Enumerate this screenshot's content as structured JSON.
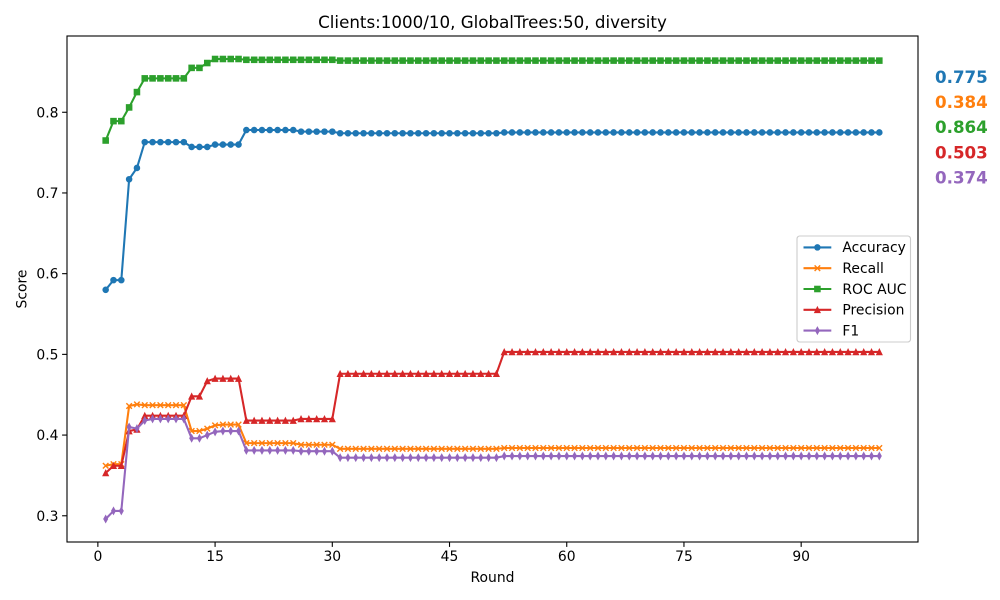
{
  "chart_data": {
    "type": "line",
    "title": "Clients:1000/10, GlobalTrees:50, diversity",
    "xlabel": "Round",
    "ylabel": "Score",
    "xlim": [
      -3.95,
      104.95
    ],
    "ylim": [
      0.2675,
      0.8945
    ],
    "xticks": [
      0,
      15,
      30,
      45,
      60,
      75,
      90
    ],
    "yticks": [
      0.3,
      0.4,
      0.5,
      0.6,
      0.7,
      0.8
    ],
    "grid": false,
    "legend": "center right",
    "x": [
      1,
      2,
      3,
      4,
      5,
      6,
      7,
      8,
      9,
      10,
      11,
      12,
      13,
      14,
      15,
      16,
      17,
      18,
      19,
      20,
      21,
      22,
      23,
      24,
      25,
      26,
      27,
      28,
      29,
      30,
      31,
      32,
      33,
      34,
      35,
      36,
      37,
      38,
      39,
      40,
      41,
      42,
      43,
      44,
      45,
      46,
      47,
      48,
      49,
      50,
      51,
      52,
      53,
      54,
      55,
      56,
      57,
      58,
      59,
      60,
      61,
      62,
      63,
      64,
      65,
      66,
      67,
      68,
      69,
      70,
      71,
      72,
      73,
      74,
      75,
      76,
      77,
      78,
      79,
      80,
      81,
      82,
      83,
      84,
      85,
      86,
      87,
      88,
      89,
      90,
      91,
      92,
      93,
      94,
      95,
      96,
      97,
      98,
      99,
      100
    ],
    "series": [
      {
        "name": "Accuracy",
        "color": "#1f77b4",
        "marker": "circle",
        "values": [
          0.58,
          0.592,
          0.592,
          0.717,
          0.731,
          0.763,
          0.763,
          0.763,
          0.763,
          0.763,
          0.763,
          0.757,
          0.757,
          0.757,
          0.76,
          0.76,
          0.76,
          0.76,
          0.778,
          0.778,
          0.778,
          0.778,
          0.778,
          0.778,
          0.778,
          0.776,
          0.776,
          0.776,
          0.776,
          0.776,
          0.774,
          0.774,
          0.774,
          0.774,
          0.774,
          0.774,
          0.774,
          0.774,
          0.774,
          0.774,
          0.774,
          0.774,
          0.774,
          0.774,
          0.774,
          0.774,
          0.774,
          0.774,
          0.774,
          0.774,
          0.774,
          0.775,
          0.775,
          0.775,
          0.775,
          0.775,
          0.775,
          0.775,
          0.775,
          0.775,
          0.775,
          0.775,
          0.775,
          0.775,
          0.775,
          0.775,
          0.775,
          0.775,
          0.775,
          0.775,
          0.775,
          0.775,
          0.775,
          0.775,
          0.775,
          0.775,
          0.775,
          0.775,
          0.775,
          0.775,
          0.775,
          0.775,
          0.775,
          0.775,
          0.775,
          0.775,
          0.775,
          0.775,
          0.775,
          0.775,
          0.775,
          0.775,
          0.775,
          0.775,
          0.775,
          0.775,
          0.775,
          0.775,
          0.775,
          0.775
        ]
      },
      {
        "name": "Recall",
        "color": "#ff7f0e",
        "marker": "x",
        "values": [
          0.362,
          0.364,
          0.364,
          0.436,
          0.438,
          0.437,
          0.437,
          0.437,
          0.437,
          0.437,
          0.437,
          0.405,
          0.405,
          0.408,
          0.412,
          0.413,
          0.413,
          0.413,
          0.39,
          0.39,
          0.39,
          0.39,
          0.39,
          0.39,
          0.39,
          0.388,
          0.388,
          0.388,
          0.388,
          0.388,
          0.383,
          0.383,
          0.383,
          0.383,
          0.383,
          0.383,
          0.383,
          0.383,
          0.383,
          0.383,
          0.383,
          0.383,
          0.383,
          0.383,
          0.383,
          0.383,
          0.383,
          0.383,
          0.383,
          0.383,
          0.383,
          0.384,
          0.384,
          0.384,
          0.384,
          0.384,
          0.384,
          0.384,
          0.384,
          0.384,
          0.384,
          0.384,
          0.384,
          0.384,
          0.384,
          0.384,
          0.384,
          0.384,
          0.384,
          0.384,
          0.384,
          0.384,
          0.384,
          0.384,
          0.384,
          0.384,
          0.384,
          0.384,
          0.384,
          0.384,
          0.384,
          0.384,
          0.384,
          0.384,
          0.384,
          0.384,
          0.384,
          0.384,
          0.384,
          0.384,
          0.384,
          0.384,
          0.384,
          0.384,
          0.384,
          0.384,
          0.384,
          0.384,
          0.384,
          0.384
        ]
      },
      {
        "name": "ROC AUC",
        "color": "#2ca02c",
        "marker": "square",
        "values": [
          0.765,
          0.789,
          0.789,
          0.806,
          0.825,
          0.842,
          0.842,
          0.842,
          0.842,
          0.842,
          0.842,
          0.855,
          0.855,
          0.861,
          0.866,
          0.866,
          0.866,
          0.866,
          0.865,
          0.865,
          0.865,
          0.865,
          0.865,
          0.865,
          0.865,
          0.865,
          0.865,
          0.865,
          0.865,
          0.865,
          0.864,
          0.864,
          0.864,
          0.864,
          0.864,
          0.864,
          0.864,
          0.864,
          0.864,
          0.864,
          0.864,
          0.864,
          0.864,
          0.864,
          0.864,
          0.864,
          0.864,
          0.864,
          0.864,
          0.864,
          0.864,
          0.864,
          0.864,
          0.864,
          0.864,
          0.864,
          0.864,
          0.864,
          0.864,
          0.864,
          0.864,
          0.864,
          0.864,
          0.864,
          0.864,
          0.864,
          0.864,
          0.864,
          0.864,
          0.864,
          0.864,
          0.864,
          0.864,
          0.864,
          0.864,
          0.864,
          0.864,
          0.864,
          0.864,
          0.864,
          0.864,
          0.864,
          0.864,
          0.864,
          0.864,
          0.864,
          0.864,
          0.864,
          0.864,
          0.864,
          0.864,
          0.864,
          0.864,
          0.864,
          0.864,
          0.864,
          0.864,
          0.864,
          0.864,
          0.864
        ]
      },
      {
        "name": "Precision",
        "color": "#d62728",
        "marker": "triangle-up",
        "values": [
          0.353,
          0.362,
          0.362,
          0.405,
          0.407,
          0.424,
          0.424,
          0.424,
          0.424,
          0.424,
          0.424,
          0.448,
          0.448,
          0.467,
          0.47,
          0.47,
          0.47,
          0.47,
          0.418,
          0.418,
          0.418,
          0.418,
          0.418,
          0.418,
          0.418,
          0.42,
          0.42,
          0.42,
          0.42,
          0.42,
          0.476,
          0.476,
          0.476,
          0.476,
          0.476,
          0.476,
          0.476,
          0.476,
          0.476,
          0.476,
          0.476,
          0.476,
          0.476,
          0.476,
          0.476,
          0.476,
          0.476,
          0.476,
          0.476,
          0.476,
          0.476,
          0.503,
          0.503,
          0.503,
          0.503,
          0.503,
          0.503,
          0.503,
          0.503,
          0.503,
          0.503,
          0.503,
          0.503,
          0.503,
          0.503,
          0.503,
          0.503,
          0.503,
          0.503,
          0.503,
          0.503,
          0.503,
          0.503,
          0.503,
          0.503,
          0.503,
          0.503,
          0.503,
          0.503,
          0.503,
          0.503,
          0.503,
          0.503,
          0.503,
          0.503,
          0.503,
          0.503,
          0.503,
          0.503,
          0.503,
          0.503,
          0.503,
          0.503,
          0.503,
          0.503,
          0.503,
          0.503,
          0.503,
          0.503,
          0.503
        ]
      },
      {
        "name": "F1",
        "color": "#9467bd",
        "marker": "thin-diamond",
        "values": [
          0.296,
          0.306,
          0.306,
          0.41,
          0.408,
          0.418,
          0.42,
          0.42,
          0.42,
          0.42,
          0.42,
          0.396,
          0.396,
          0.4,
          0.404,
          0.405,
          0.405,
          0.405,
          0.381,
          0.381,
          0.381,
          0.381,
          0.381,
          0.381,
          0.381,
          0.38,
          0.38,
          0.38,
          0.38,
          0.38,
          0.372,
          0.372,
          0.372,
          0.372,
          0.372,
          0.372,
          0.372,
          0.372,
          0.372,
          0.372,
          0.372,
          0.372,
          0.372,
          0.372,
          0.372,
          0.372,
          0.372,
          0.372,
          0.372,
          0.372,
          0.372,
          0.374,
          0.374,
          0.374,
          0.374,
          0.374,
          0.374,
          0.374,
          0.374,
          0.374,
          0.374,
          0.374,
          0.374,
          0.374,
          0.374,
          0.374,
          0.374,
          0.374,
          0.374,
          0.374,
          0.374,
          0.374,
          0.374,
          0.374,
          0.374,
          0.374,
          0.374,
          0.374,
          0.374,
          0.374,
          0.374,
          0.374,
          0.374,
          0.374,
          0.374,
          0.374,
          0.374,
          0.374,
          0.374,
          0.374,
          0.374,
          0.374,
          0.374,
          0.374,
          0.374,
          0.374,
          0.374,
          0.374,
          0.374,
          0.374
        ]
      }
    ],
    "annotations": [
      {
        "text": "0.775",
        "color": "#1f77b4"
      },
      {
        "text": "0.384",
        "color": "#ff7f0e"
      },
      {
        "text": "0.864",
        "color": "#2ca02c"
      },
      {
        "text": "0.503",
        "color": "#d62728"
      },
      {
        "text": "0.374",
        "color": "#9467bd"
      }
    ]
  }
}
